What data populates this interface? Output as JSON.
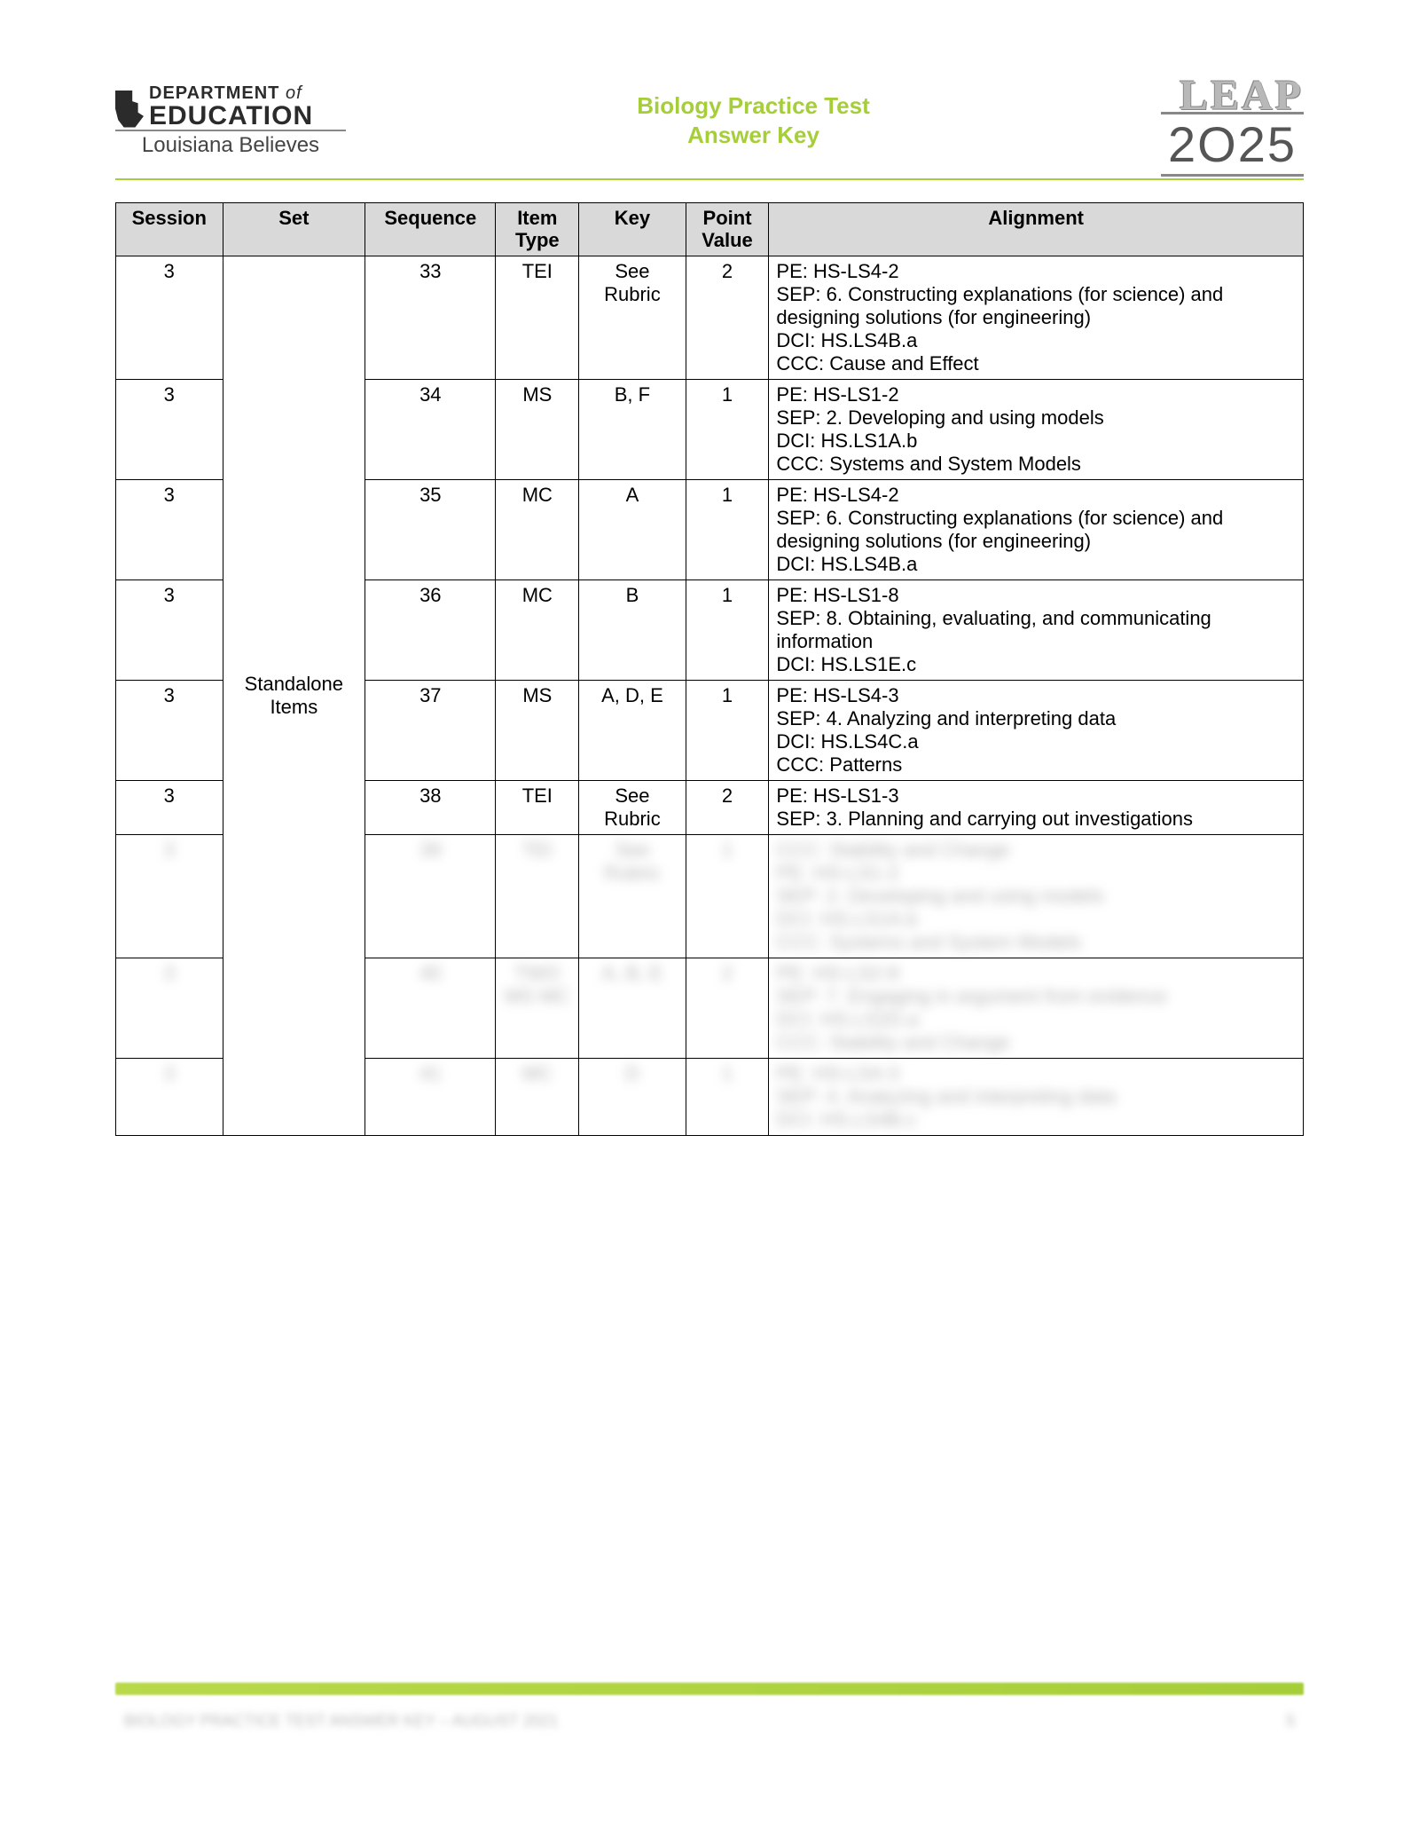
{
  "header": {
    "dept_line1_a": "DEPARTMENT",
    "dept_line1_b": "of",
    "dept_line2": "EDUCATION",
    "believes": "Louisiana Believes",
    "title_line1": "Biology Practice Test",
    "title_line2": "Answer Key",
    "leap": "LEAP",
    "year": "2O25"
  },
  "columns": {
    "c0": "Session",
    "c1": "Set",
    "c2": "Sequence",
    "c3a": "Item",
    "c3b": "Type",
    "c4": "Key",
    "c5a": "Point",
    "c5b": "Value",
    "c6": "Alignment"
  },
  "set_label": "Standalone Items",
  "rows": {
    "r0": {
      "session": "3",
      "sequence": "33",
      "item_type": "TEI",
      "key": "See Rubric",
      "point_value": "2",
      "alignment": "PE: HS-LS4-2\nSEP: 6. Constructing explanations (for science) and designing solutions (for engineering)\nDCI: HS.LS4B.a\nCCC: Cause and Effect"
    },
    "r1": {
      "session": "3",
      "sequence": "34",
      "item_type": "MS",
      "key": "B, F",
      "point_value": "1",
      "alignment": "PE: HS-LS1-2\nSEP: 2. Developing and using models\nDCI: HS.LS1A.b\nCCC: Systems and System Models"
    },
    "r2": {
      "session": "3",
      "sequence": "35",
      "item_type": "MC",
      "key": "A",
      "point_value": "1",
      "alignment": "PE: HS-LS4-2\nSEP: 6. Constructing explanations (for science) and designing solutions (for engineering)\nDCI: HS.LS4B.a"
    },
    "r3": {
      "session": "3",
      "sequence": "36",
      "item_type": "MC",
      "key": "B",
      "point_value": "1",
      "alignment": "PE: HS-LS1-8\nSEP: 8. Obtaining, evaluating, and communicating information\nDCI: HS.LS1E.c"
    },
    "r4": {
      "session": "3",
      "sequence": "37",
      "item_type": "MS",
      "key": "A, D, E",
      "point_value": "1",
      "alignment": "PE: HS-LS4-3\nSEP: 4. Analyzing and interpreting data\nDCI: HS.LS4C.a\nCCC: Patterns"
    },
    "r5": {
      "session": "3",
      "sequence": "38",
      "item_type": "TEI",
      "key": "See Rubric",
      "point_value": "2",
      "alignment": "PE: HS-LS1-3\nSEP: 3. Planning and carrying out investigations"
    }
  },
  "blurred_rows": {
    "b0": {
      "session": "3",
      "sequence": "39",
      "item_type": "TEI",
      "key": "See Rubric",
      "point_value": "1",
      "alignment": "CCC: Stability and Change\nPE: HS-LS1-2\nSEP: 2. Developing and using models\nDCI: HS.LS1A.b\nCCC: Systems and System Models"
    },
    "b1": {
      "session": "3",
      "sequence": "40",
      "item_type": "TWO MS MC",
      "key": "A, B, E",
      "point_value": "2",
      "alignment": "PE: HS-LS2-8\nSEP: 7. Engaging in argument from evidence\nDCI: HS.LS2D.a\nCCC: Stability and Change"
    },
    "b2": {
      "session": "3",
      "sequence": "41",
      "item_type": "MC",
      "key": "D",
      "point_value": "1",
      "alignment": "PE: HS-LS4-3\nSEP: 4. Analyzing and interpreting data\nDCI: HS.LS4B.c"
    }
  },
  "footer": {
    "text": "BIOLOGY PRACTICE TEST ANSWER KEY – AUGUST 2021",
    "page": "5"
  },
  "colors": {
    "accent": "#a6ce39",
    "header_bg": "#d9d9d9",
    "border": "#000000",
    "leap_gray": "#b8b8b8"
  },
  "col_widths_pct": [
    9,
    12,
    11,
    7,
    9,
    7,
    45
  ]
}
